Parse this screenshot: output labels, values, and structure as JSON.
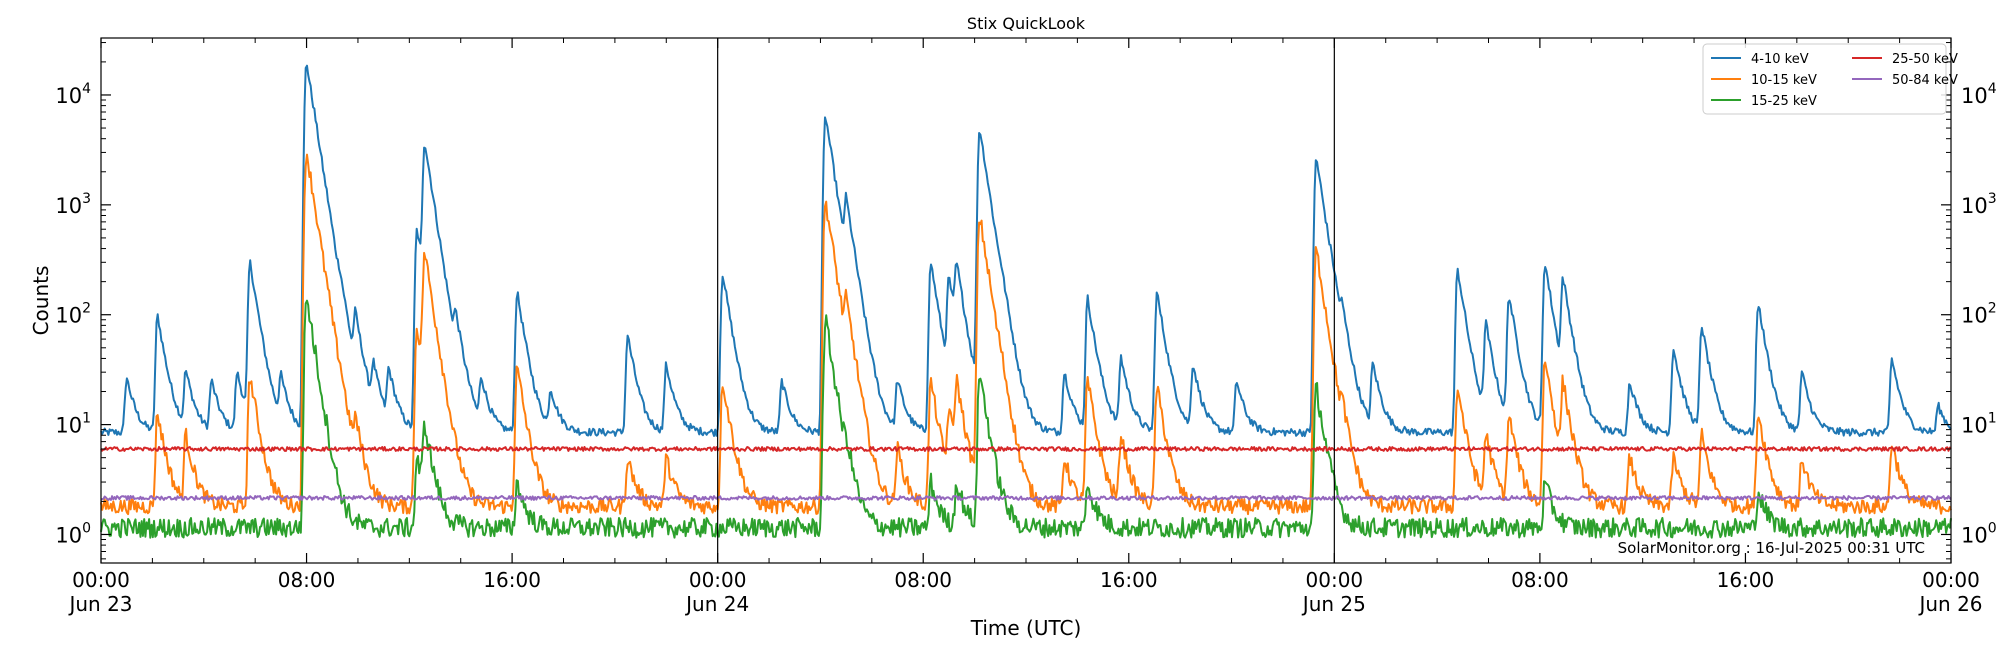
{
  "title": "Stix QuickLook",
  "footer": "SolarMonitor.org : 16-Jul-2025 00:31 UTC",
  "chart_data": {
    "type": "line",
    "title": "Stix QuickLook",
    "xlabel": "Time (UTC)",
    "ylabel": "Counts",
    "yscale": "log",
    "ylim": [
      0.55,
      33000
    ],
    "xlim_hours": [
      0,
      72
    ],
    "x_tick_labels": [
      {
        "hour": 0,
        "time": "00:00",
        "date": "Jun 23"
      },
      {
        "hour": 8,
        "time": "08:00",
        "date": ""
      },
      {
        "hour": 16,
        "time": "16:00",
        "date": ""
      },
      {
        "hour": 24,
        "time": "00:00",
        "date": "Jun 24"
      },
      {
        "hour": 32,
        "time": "08:00",
        "date": ""
      },
      {
        "hour": 40,
        "time": "16:00",
        "date": ""
      },
      {
        "hour": 48,
        "time": "00:00",
        "date": "Jun 25"
      },
      {
        "hour": 56,
        "time": "08:00",
        "date": ""
      },
      {
        "hour": 64,
        "time": "16:00",
        "date": ""
      },
      {
        "hour": 72,
        "time": "00:00",
        "date": "Jun 26"
      }
    ],
    "y_ticks": [
      {
        "value": 1,
        "label": "10",
        "exp": "0"
      },
      {
        "value": 10,
        "label": "10",
        "exp": "1"
      },
      {
        "value": 100,
        "label": "10",
        "exp": "2"
      },
      {
        "value": 1000,
        "label": "10",
        "exp": "3"
      },
      {
        "value": 10000,
        "label": "10",
        "exp": "4"
      }
    ],
    "day_boundaries_hours": [
      24,
      48
    ],
    "grid": false,
    "legend_position": "top-right",
    "series": [
      {
        "name": "4-10 keV",
        "color": "#1f77b4",
        "baseline": 8.5,
        "flares": [
          [
            1.0,
            27
          ],
          [
            2.2,
            100
          ],
          [
            3.3,
            30
          ],
          [
            4.3,
            25
          ],
          [
            5.3,
            30
          ],
          [
            5.8,
            300
          ],
          [
            7.0,
            25
          ],
          [
            8.0,
            20000
          ],
          [
            8.3,
            320
          ],
          [
            8.8,
            60
          ],
          [
            9.3,
            50
          ],
          [
            9.9,
            80
          ],
          [
            10.6,
            30
          ],
          [
            11.2,
            30
          ],
          [
            12.3,
            600
          ],
          [
            12.6,
            3600
          ],
          [
            13.8,
            60
          ],
          [
            14.8,
            25
          ],
          [
            16.2,
            160
          ],
          [
            17.5,
            20
          ],
          [
            20.5,
            65
          ],
          [
            22.0,
            35
          ],
          [
            24.2,
            240
          ],
          [
            26.5,
            25
          ],
          [
            28.2,
            6500
          ],
          [
            29.0,
            820
          ],
          [
            31.0,
            25
          ],
          [
            32.3,
            300
          ],
          [
            33.0,
            200
          ],
          [
            33.3,
            230
          ],
          [
            34.2,
            5000
          ],
          [
            35.0,
            40
          ],
          [
            37.5,
            30
          ],
          [
            38.4,
            140
          ],
          [
            39.7,
            40
          ],
          [
            41.1,
            160
          ],
          [
            42.5,
            35
          ],
          [
            44.2,
            25
          ],
          [
            47.3,
            2700
          ],
          [
            47.9,
            40
          ],
          [
            48.3,
            50
          ],
          [
            49.5,
            35
          ],
          [
            52.8,
            260
          ],
          [
            53.9,
            80
          ],
          [
            54.8,
            150
          ],
          [
            56.2,
            300
          ],
          [
            56.9,
            200
          ],
          [
            59.5,
            25
          ],
          [
            61.2,
            50
          ],
          [
            62.3,
            80
          ],
          [
            64.5,
            130
          ],
          [
            66.2,
            30
          ],
          [
            69.7,
            40
          ],
          [
            71.5,
            15
          ]
        ]
      },
      {
        "name": "10-15 keV",
        "color": "#ff7f0e",
        "baseline": 1.8,
        "flares": [
          [
            2.2,
            13
          ],
          [
            3.3,
            8
          ],
          [
            5.8,
            28
          ],
          [
            8.0,
            3100
          ],
          [
            8.3,
            25
          ],
          [
            8.8,
            8
          ],
          [
            9.3,
            6
          ],
          [
            9.9,
            8
          ],
          [
            12.3,
            80
          ],
          [
            12.6,
            350
          ],
          [
            16.2,
            33
          ],
          [
            20.5,
            5
          ],
          [
            22.0,
            5
          ],
          [
            24.2,
            25
          ],
          [
            28.2,
            1100
          ],
          [
            29.0,
            80
          ],
          [
            31.0,
            6
          ],
          [
            32.3,
            25
          ],
          [
            33.0,
            12
          ],
          [
            33.3,
            22
          ],
          [
            34.2,
            800
          ],
          [
            35.0,
            8
          ],
          [
            37.5,
            5
          ],
          [
            38.4,
            25
          ],
          [
            39.7,
            8
          ],
          [
            41.1,
            22
          ],
          [
            47.3,
            400
          ],
          [
            48.3,
            7
          ],
          [
            52.8,
            22
          ],
          [
            53.9,
            8
          ],
          [
            54.8,
            12
          ],
          [
            56.2,
            40
          ],
          [
            56.9,
            22
          ],
          [
            59.5,
            5
          ],
          [
            61.2,
            5
          ],
          [
            62.3,
            8
          ],
          [
            64.5,
            13
          ],
          [
            66.2,
            5
          ],
          [
            69.7,
            7
          ]
        ]
      },
      {
        "name": "15-25 keV",
        "color": "#2ca02c",
        "baseline": 1.15,
        "flares": [
          [
            8.0,
            150
          ],
          [
            12.3,
            5
          ],
          [
            12.6,
            9
          ],
          [
            16.2,
            3
          ],
          [
            28.2,
            90
          ],
          [
            29.0,
            3
          ],
          [
            32.3,
            3
          ],
          [
            33.3,
            3
          ],
          [
            34.2,
            30
          ],
          [
            38.4,
            3
          ],
          [
            47.3,
            22
          ],
          [
            56.2,
            3
          ],
          [
            64.5,
            2.5
          ]
        ]
      },
      {
        "name": "25-50 keV",
        "color": "#d62728",
        "baseline": 6.0,
        "flares": []
      },
      {
        "name": "50-84 keV",
        "color": "#9467bd",
        "baseline": 2.15,
        "flares": []
      }
    ]
  }
}
